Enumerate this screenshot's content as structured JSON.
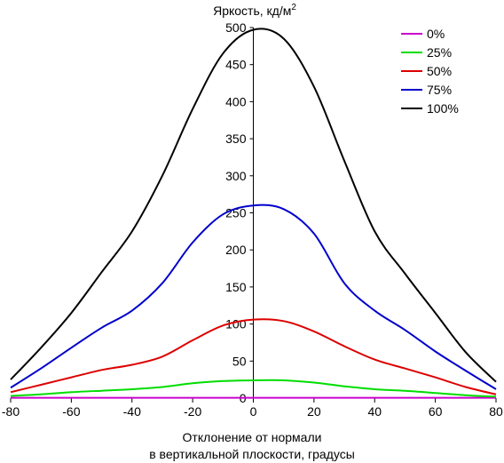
{
  "chart_data": {
    "type": "line",
    "title": "Яркость, кд/м",
    "title_superscript": "2",
    "xlabel_lines": [
      "Отклонение от нормали",
      "в вертикальной плоскости, градусы"
    ],
    "xlim": [
      -80,
      80
    ],
    "ylim": [
      0,
      500
    ],
    "xticks": [
      -80,
      -60,
      -40,
      -20,
      0,
      20,
      40,
      60,
      80
    ],
    "yticks": [
      0,
      50,
      100,
      150,
      200,
      250,
      300,
      350,
      400,
      450,
      500
    ],
    "grid": false,
    "legend_position": "top-right",
    "x": [
      -80,
      -70,
      -60,
      -50,
      -40,
      -30,
      -20,
      -10,
      0,
      10,
      20,
      30,
      40,
      50,
      60,
      70,
      80
    ],
    "series": [
      {
        "name": "0%",
        "color": "#cc00cc",
        "values": [
          0.5,
          0.5,
          0.5,
          0.5,
          0.5,
          0.5,
          0.5,
          0.5,
          0.5,
          0.5,
          0.5,
          0.5,
          0.5,
          0.5,
          0.5,
          0.5,
          0.5
        ]
      },
      {
        "name": "25%",
        "color": "#00dd00",
        "values": [
          3,
          5,
          8,
          10,
          12,
          15,
          20,
          23,
          24,
          24,
          21,
          16,
          12,
          10,
          7,
          4,
          2
        ]
      },
      {
        "name": "50%",
        "color": "#dd0000",
        "values": [
          8,
          18,
          28,
          38,
          45,
          56,
          78,
          98,
          106,
          104,
          90,
          70,
          52,
          40,
          28,
          15,
          5
        ]
      },
      {
        "name": "75%",
        "color": "#0000cc",
        "values": [
          14,
          40,
          68,
          95,
          118,
          155,
          210,
          248,
          260,
          255,
          222,
          155,
          118,
          92,
          63,
          37,
          12
        ]
      },
      {
        "name": "100%",
        "color": "#000000",
        "values": [
          25,
          68,
          115,
          170,
          225,
          300,
          390,
          465,
          497,
          485,
          420,
          320,
          225,
          168,
          115,
          62,
          22
        ]
      }
    ]
  }
}
